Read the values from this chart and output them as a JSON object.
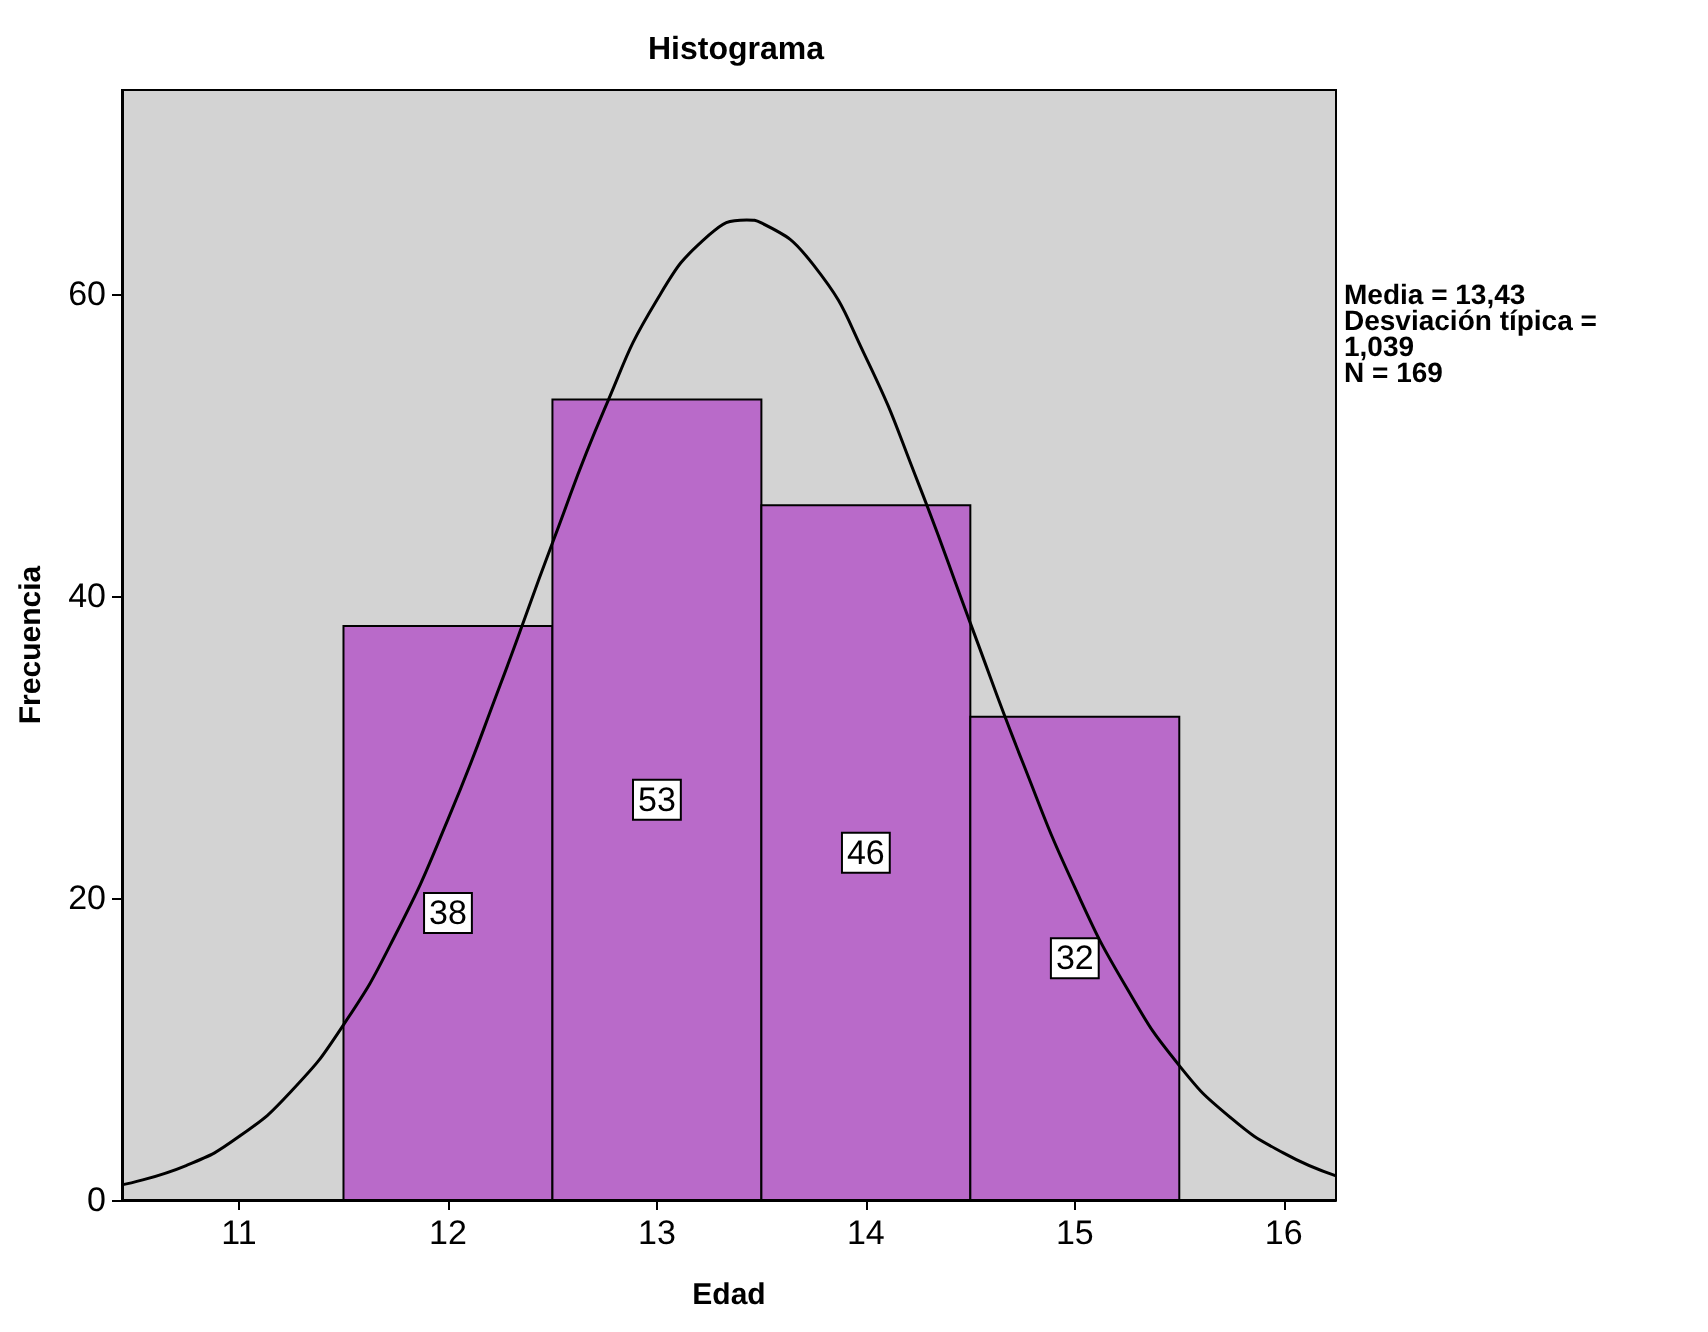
{
  "chart_data": {
    "type": "histogram",
    "title": "Histograma",
    "xlabel": "Edad",
    "ylabel": "Frecuencia",
    "bins": [
      11.5,
      12.5,
      13.5,
      14.5,
      15.5
    ],
    "series": [
      {
        "color": "#b96ac9",
        "values": [
          38,
          53,
          46,
          32
        ],
        "value_labels": [
          "38",
          "53",
          "46",
          "32"
        ]
      },
      {
        "type": "line",
        "color": "#000000",
        "x": [
          10.44,
          10.75,
          11.0,
          11.25,
          11.5,
          11.75,
          12.0,
          12.25,
          12.5,
          12.75,
          13.0,
          13.25,
          13.43,
          13.5,
          13.75,
          14.0,
          14.25,
          14.5,
          14.75,
          15.0,
          15.25,
          15.5,
          15.75,
          16.0,
          16.25
        ],
        "values": [
          1.0,
          2.3,
          4.2,
          7.2,
          11.6,
          17.6,
          25.2,
          34.1,
          43.5,
          52.4,
          59.6,
          63.9,
          64.9,
          64.7,
          61.9,
          55.8,
          47.5,
          38.2,
          29.0,
          20.7,
          14.0,
          8.9,
          5.4,
          3.1,
          1.6
        ]
      }
    ],
    "xlim": [
      10.44,
      16.25
    ],
    "xticks": [
      11,
      12,
      13,
      14,
      15,
      16
    ],
    "ylim": [
      0,
      73.5
    ],
    "yticks": [
      0,
      20,
      40,
      60
    ],
    "grid": false,
    "marker": "none",
    "line_style": "solid",
    "annotations": [
      "Media = 13,43",
      "Desviación típica = 1,039",
      "N = 169"
    ]
  }
}
